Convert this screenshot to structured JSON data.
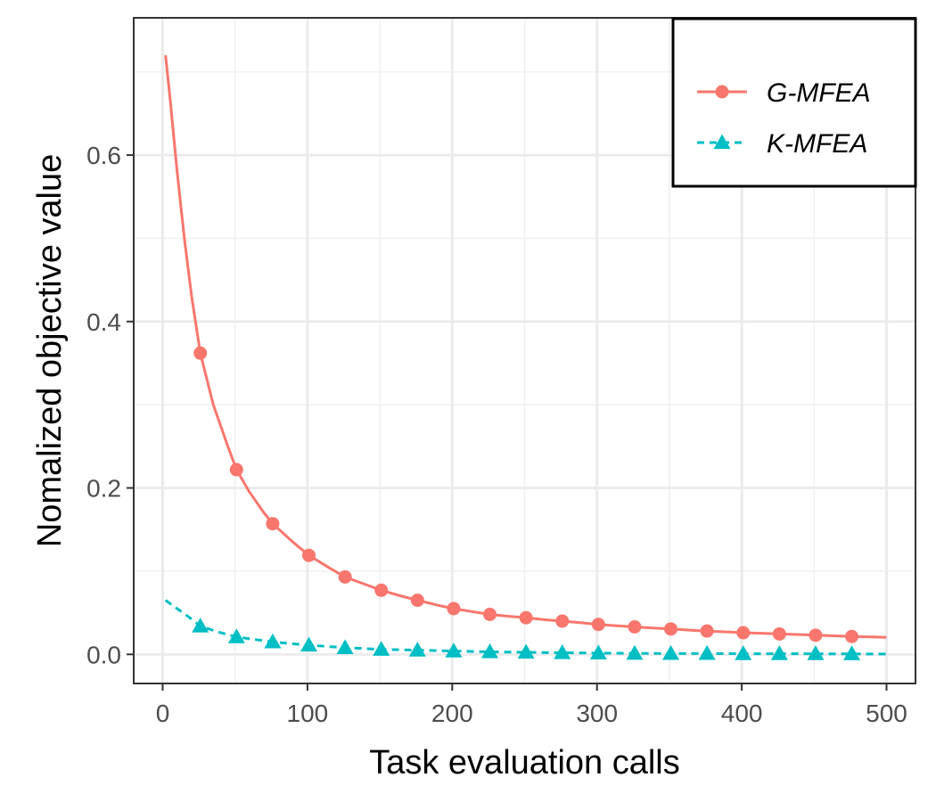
{
  "chart_data": {
    "type": "line",
    "title": "",
    "xlabel": "Task evaluation calls",
    "ylabel": "Nomalized objective value",
    "xlim": [
      -20,
      520
    ],
    "ylim": [
      -0.035,
      0.765
    ],
    "x_ticks": [
      0,
      100,
      200,
      300,
      400,
      500
    ],
    "x_tick_labels": [
      "0",
      "100",
      "200",
      "300",
      "400",
      "500"
    ],
    "y_ticks": [
      0.0,
      0.2,
      0.4,
      0.6
    ],
    "y_tick_labels": [
      "0.0",
      "0.2",
      "0.4",
      "0.6"
    ],
    "grid": true,
    "legend_position": "top-right",
    "series": [
      {
        "name": "G-MFEA",
        "color": "#F8766D",
        "line_style": "solid",
        "marker": "circle",
        "curve_x": [
          2,
          5,
          10,
          15,
          20,
          26,
          35,
          45,
          51,
          60,
          70,
          76,
          90,
          101,
          115,
          126,
          140,
          151,
          165,
          176,
          190,
          201,
          215,
          226,
          240,
          251,
          265,
          276,
          290,
          301,
          315,
          326,
          340,
          351,
          365,
          376,
          390,
          401,
          415,
          426,
          440,
          451,
          465,
          476,
          490,
          500
        ],
        "curve_y": [
          0.72,
          0.67,
          0.58,
          0.5,
          0.43,
          0.362,
          0.3,
          0.25,
          0.222,
          0.195,
          0.17,
          0.157,
          0.135,
          0.119,
          0.104,
          0.093,
          0.084,
          0.077,
          0.07,
          0.065,
          0.059,
          0.055,
          0.051,
          0.048,
          0.0455,
          0.044,
          0.0415,
          0.04,
          0.0378,
          0.036,
          0.0342,
          0.033,
          0.0315,
          0.0305,
          0.029,
          0.028,
          0.027,
          0.026,
          0.0252,
          0.0245,
          0.0238,
          0.023,
          0.0222,
          0.0215,
          0.021,
          0.0205
        ],
        "marker_x": [
          26,
          51,
          76,
          101,
          126,
          151,
          176,
          201,
          226,
          251,
          276,
          301,
          326,
          351,
          376,
          401,
          426,
          451,
          476
        ],
        "marker_y": [
          0.362,
          0.222,
          0.157,
          0.119,
          0.093,
          0.077,
          0.065,
          0.055,
          0.048,
          0.044,
          0.04,
          0.036,
          0.033,
          0.0305,
          0.028,
          0.026,
          0.0245,
          0.023,
          0.0215
        ]
      },
      {
        "name": "K-MFEA",
        "color": "#00BFC4",
        "line_style": "dashed",
        "marker": "triangle",
        "curve_x": [
          2,
          10,
          18,
          26,
          38,
          51,
          63,
          76,
          88,
          101,
          126,
          151,
          176,
          201,
          226,
          251,
          276,
          301,
          326,
          351,
          376,
          401,
          426,
          451,
          476,
          500
        ],
        "curve_y": [
          0.065,
          0.055,
          0.045,
          0.034,
          0.027,
          0.021,
          0.018,
          0.015,
          0.013,
          0.011,
          0.008,
          0.006,
          0.005,
          0.004,
          0.003,
          0.0025,
          0.002,
          0.0015,
          0.0012,
          0.001,
          0.001,
          0.0008,
          0.0008,
          0.0007,
          0.0006,
          0.0005
        ],
        "marker_x": [
          26,
          51,
          76,
          101,
          126,
          151,
          176,
          201,
          226,
          251,
          276,
          301,
          326,
          351,
          376,
          401,
          426,
          451,
          476
        ],
        "marker_y": [
          0.034,
          0.021,
          0.015,
          0.011,
          0.008,
          0.006,
          0.005,
          0.004,
          0.003,
          0.0025,
          0.002,
          0.0015,
          0.0012,
          0.001,
          0.001,
          0.0008,
          0.0008,
          0.0007,
          0.0006
        ]
      }
    ]
  }
}
